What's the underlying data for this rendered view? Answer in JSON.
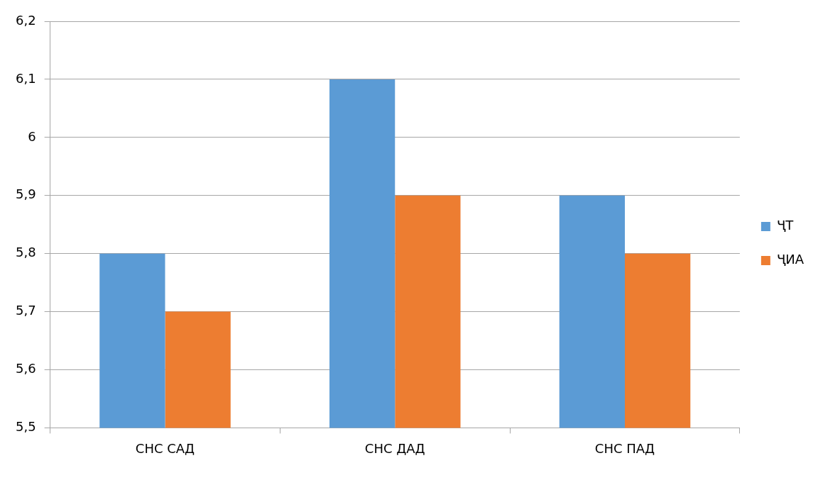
{
  "chart_data": {
    "type": "bar",
    "categories": [
      "СНС САД",
      "СНС ДАД",
      "СНС ПАД"
    ],
    "series": [
      {
        "name": "ҶТ",
        "color": "#5b9bd5",
        "values": [
          5.8,
          6.1,
          5.9
        ]
      },
      {
        "name": "ҶИА",
        "color": "#ed7d31",
        "values": [
          5.7,
          5.9,
          5.8
        ]
      }
    ],
    "ylim": [
      5.5,
      6.2
    ],
    "yticks": [
      {
        "value": 5.5,
        "label": "5,5"
      },
      {
        "value": 5.6,
        "label": "5,6"
      },
      {
        "value": 5.7,
        "label": "5,7"
      },
      {
        "value": 5.8,
        "label": "5,8"
      },
      {
        "value": 5.9,
        "label": "5,9"
      },
      {
        "value": 6,
        "label": "6"
      },
      {
        "value": 6.1,
        "label": "6,1"
      },
      {
        "value": 6.2,
        "label": "6,2"
      }
    ],
    "grid": "y",
    "legend": "right"
  }
}
